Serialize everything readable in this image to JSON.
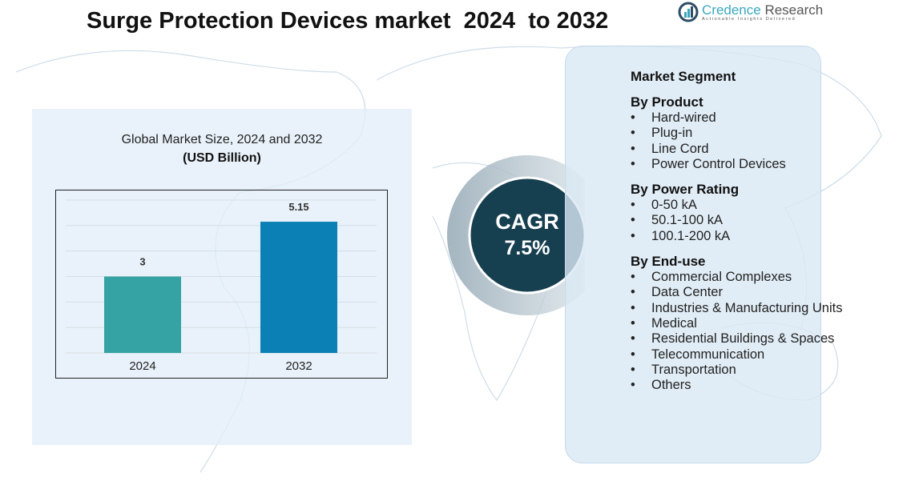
{
  "title": "Surge Protection Devices market  2024  to 2032",
  "logo": {
    "name_part1": "Credence",
    "name_part2": " Research",
    "tagline": "Actionable Insights Delivered"
  },
  "cagr": {
    "label": "CAGR",
    "value": "7.5%"
  },
  "colors": {
    "bar_2024": "#35a3a3",
    "bar_2032": "#0a80b4",
    "cagr_circle": "#163f50"
  },
  "chart_data": {
    "type": "bar",
    "title": "Global Market Size, 2024 and 2032",
    "subtitle": "(USD Billion)",
    "categories": [
      "2024",
      "2032"
    ],
    "values": [
      3,
      5.15
    ],
    "data_labels": [
      "3",
      "5.15"
    ],
    "ylim": [
      0,
      6
    ],
    "grid": true,
    "xlabel": "",
    "ylabel": ""
  },
  "segment": {
    "heading": "Market Segment",
    "groups": [
      {
        "title": "By Product",
        "items": [
          "Hard-wired",
          "Plug-in",
          "Line Cord",
          "Power Control Devices"
        ]
      },
      {
        "title": "By Power Rating",
        "items": [
          "0-50 kA",
          "50.1-100 kA",
          "100.1-200 kA"
        ]
      },
      {
        "title": "By End-use",
        "items": [
          "Commercial Complexes",
          "Data Center",
          "Industries & Manufacturing Units",
          "Medical",
          "Residential Buildings & Spaces",
          "Telecommunication",
          "Transportation",
          "Others"
        ]
      }
    ]
  }
}
